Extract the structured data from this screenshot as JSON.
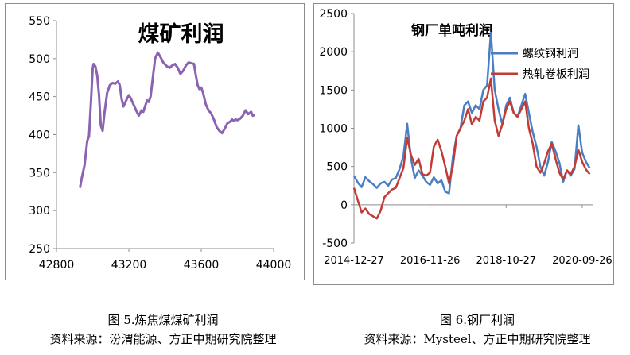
{
  "colors": {
    "coal": "#8b63b3",
    "rebar": "#4a7ec4",
    "hrc": "#c23b36",
    "axis": "#8c8c8c",
    "text": "#000000"
  },
  "chart_data": [
    {
      "type": "line",
      "title": "煤矿利润",
      "xlabel": "",
      "ylabel": "",
      "xlim": [
        42800,
        44000
      ],
      "ylim": [
        250,
        550
      ],
      "xticks": [
        "42800",
        "43200",
        "43600",
        "44000"
      ],
      "yticks": [
        "250",
        "300",
        "350",
        "400",
        "450",
        "500",
        "550"
      ],
      "grid": false,
      "series": [
        {
          "color": "#8b63b3",
          "x": [
            42930,
            42940,
            42955,
            42970,
            42980,
            42990,
            43000,
            43005,
            43015,
            43025,
            43035,
            43045,
            43055,
            43065,
            43080,
            43095,
            43110,
            43125,
            43140,
            43150,
            43160,
            43170,
            43185,
            43200,
            43210,
            43225,
            43240,
            43255,
            43270,
            43280,
            43300,
            43310,
            43320,
            43330,
            43345,
            43360,
            43375,
            43390,
            43410,
            43425,
            43440,
            43455,
            43470,
            43485,
            43500,
            43515,
            43530,
            43545,
            43560,
            43570,
            43580,
            43590,
            43600,
            43610,
            43625,
            43640,
            43655,
            43670,
            43685,
            43700,
            43715,
            43730,
            43745,
            43760,
            43770,
            43780,
            43790,
            43800,
            43815,
            43830,
            43845,
            43860,
            43875,
            43885,
            43895
          ],
          "values": [
            330,
            343,
            360,
            392,
            398,
            440,
            487,
            493,
            490,
            478,
            452,
            412,
            405,
            428,
            455,
            465,
            468,
            467,
            470,
            465,
            447,
            437,
            445,
            452,
            448,
            440,
            432,
            425,
            432,
            430,
            445,
            443,
            450,
            470,
            500,
            508,
            502,
            495,
            490,
            488,
            491,
            493,
            488,
            480,
            484,
            491,
            495,
            494,
            493,
            478,
            465,
            460,
            462,
            455,
            440,
            432,
            428,
            420,
            410,
            405,
            402,
            408,
            415,
            417,
            420,
            418,
            420,
            419,
            421,
            425,
            432,
            427,
            430,
            425,
            426
          ]
        }
      ]
    },
    {
      "type": "line",
      "title": "钢厂单吨利润",
      "xlabel": "",
      "ylabel": "",
      "ylim": [
        -500,
        2500
      ],
      "xlim": [
        "2014-12-27",
        "2020-12-31"
      ],
      "xticks": [
        "2014-12-27",
        "2016-11-26",
        "2018-10-27",
        "2020-09-26"
      ],
      "yticks": [
        "-500",
        "0",
        "500",
        "1000",
        "1500",
        "2000",
        "2500"
      ],
      "legend": "top-right",
      "grid": false,
      "series": [
        {
          "name": "螺纹钢利润",
          "color": "#4a7ec4",
          "x": [
            "2014-12-27",
            "2015-01-31",
            "2015-03-07",
            "2015-04-11",
            "2015-05-16",
            "2015-06-20",
            "2015-07-25",
            "2015-08-29",
            "2015-10-03",
            "2015-11-07",
            "2015-12-12",
            "2016-01-16",
            "2016-02-20",
            "2016-03-26",
            "2016-04-30",
            "2016-06-04",
            "2016-07-09",
            "2016-08-13",
            "2016-09-17",
            "2016-10-22",
            "2016-11-26",
            "2016-12-31",
            "2017-02-04",
            "2017-03-11",
            "2017-04-15",
            "2017-05-20",
            "2017-06-24",
            "2017-07-29",
            "2017-09-02",
            "2017-10-07",
            "2017-11-11",
            "2017-12-16",
            "2018-01-20",
            "2018-02-24",
            "2018-03-31",
            "2018-05-05",
            "2018-06-09",
            "2018-07-14",
            "2018-08-18",
            "2018-09-22",
            "2018-10-27",
            "2018-12-01",
            "2019-01-05",
            "2019-02-09",
            "2019-03-16",
            "2019-04-20",
            "2019-05-25",
            "2019-06-29",
            "2019-08-03",
            "2019-09-07",
            "2019-10-12",
            "2019-11-16",
            "2019-12-21",
            "2020-01-25",
            "2020-02-29",
            "2020-04-04",
            "2020-05-09",
            "2020-06-13",
            "2020-07-18",
            "2020-08-22",
            "2020-09-26",
            "2020-10-31",
            "2020-12-05"
          ],
          "values": [
            380,
            290,
            230,
            360,
            310,
            270,
            220,
            280,
            300,
            250,
            330,
            350,
            470,
            640,
            1060,
            600,
            350,
            450,
            380,
            300,
            260,
            360,
            280,
            320,
            170,
            150,
            620,
            900,
            1000,
            1300,
            1350,
            1200,
            1300,
            1250,
            1500,
            1560,
            2250,
            1500,
            1250,
            1050,
            1300,
            1400,
            1200,
            1150,
            1300,
            1450,
            1200,
            950,
            760,
            500,
            380,
            560,
            820,
            700,
            550,
            300,
            450,
            380,
            470,
            1040,
            680,
            560,
            480
          ]
        },
        {
          "name": "热轧卷板利润",
          "color": "#c23b36",
          "x": [
            "2014-12-27",
            "2015-01-31",
            "2015-03-07",
            "2015-04-11",
            "2015-05-16",
            "2015-06-20",
            "2015-07-25",
            "2015-08-29",
            "2015-10-03",
            "2015-11-07",
            "2015-12-12",
            "2016-01-16",
            "2016-02-20",
            "2016-03-26",
            "2016-04-30",
            "2016-06-04",
            "2016-07-09",
            "2016-08-13",
            "2016-09-17",
            "2016-10-22",
            "2016-11-26",
            "2016-12-31",
            "2017-02-04",
            "2017-03-11",
            "2017-04-15",
            "2017-05-20",
            "2017-06-24",
            "2017-07-29",
            "2017-09-02",
            "2017-10-07",
            "2017-11-11",
            "2017-12-16",
            "2018-01-20",
            "2018-02-24",
            "2018-03-31",
            "2018-05-05",
            "2018-06-09",
            "2018-07-14",
            "2018-08-18",
            "2018-09-22",
            "2018-10-27",
            "2018-12-01",
            "2019-01-05",
            "2019-02-09",
            "2019-03-16",
            "2019-04-20",
            "2019-05-25",
            "2019-06-29",
            "2019-08-03",
            "2019-09-07",
            "2019-10-12",
            "2019-11-16",
            "2019-12-21",
            "2020-01-25",
            "2020-02-29",
            "2020-04-04",
            "2020-05-09",
            "2020-06-13",
            "2020-07-18",
            "2020-08-22",
            "2020-09-26",
            "2020-10-31",
            "2020-12-05"
          ],
          "values": [
            220,
            60,
            -100,
            -50,
            -120,
            -150,
            -180,
            -80,
            100,
            150,
            200,
            220,
            350,
            480,
            880,
            650,
            520,
            600,
            400,
            380,
            420,
            760,
            850,
            700,
            500,
            280,
            500,
            900,
            1000,
            1100,
            1250,
            1050,
            1150,
            1100,
            1350,
            1400,
            1650,
            1100,
            900,
            1050,
            1250,
            1350,
            1200,
            1150,
            1250,
            1350,
            1000,
            800,
            500,
            420,
            540,
            700,
            800,
            600,
            420,
            330,
            450,
            400,
            500,
            720,
            560,
            460,
            400
          ]
        }
      ]
    }
  ],
  "captions": {
    "left_title": "图 5.炼焦煤煤矿利润",
    "left_source": "资料来源：汾渭能源、方正中期研究院整理",
    "right_title": "图 6.钢厂利润",
    "right_source": "资料来源：Mysteel、方正中期研究院整理"
  }
}
